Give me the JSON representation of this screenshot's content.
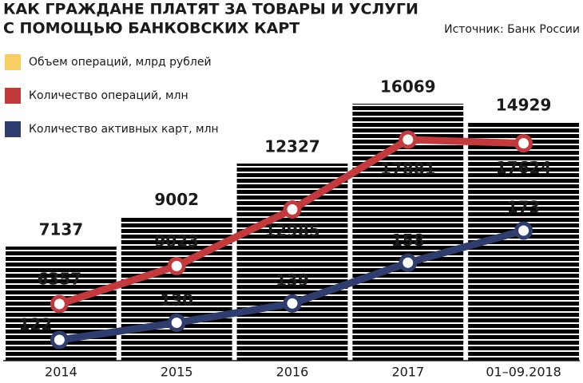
{
  "chart_data": {
    "type": "bar",
    "title": [
      "КАК ГРАЖДАНЕ ПЛАТЯТ ЗА ТОВАРЫ И УСЛУГИ",
      "С ПОМОЩЬЮ БАНКОВСКИХ КАРТ"
    ],
    "source": "Источник: Банк России",
    "categories": [
      "2014",
      "2015",
      "2016",
      "2017",
      "01–09.2018"
    ],
    "series": [
      {
        "name": "Объем операций, млрд рублей",
        "type": "bar",
        "color": "#f8cd62",
        "values": [
          7137,
          9002,
          12327,
          16069,
          14929
        ]
      },
      {
        "name": "Количество операций, млн",
        "type": "line",
        "color": "#c4393c",
        "values": [
          6357,
          9023,
          12985,
          17881,
          17624
        ]
      },
      {
        "name": "Количество активных карт, млн",
        "type": "line",
        "color": "#2e3d6d",
        "values": [
          122,
          130,
          139,
          158,
          173
        ]
      }
    ]
  }
}
